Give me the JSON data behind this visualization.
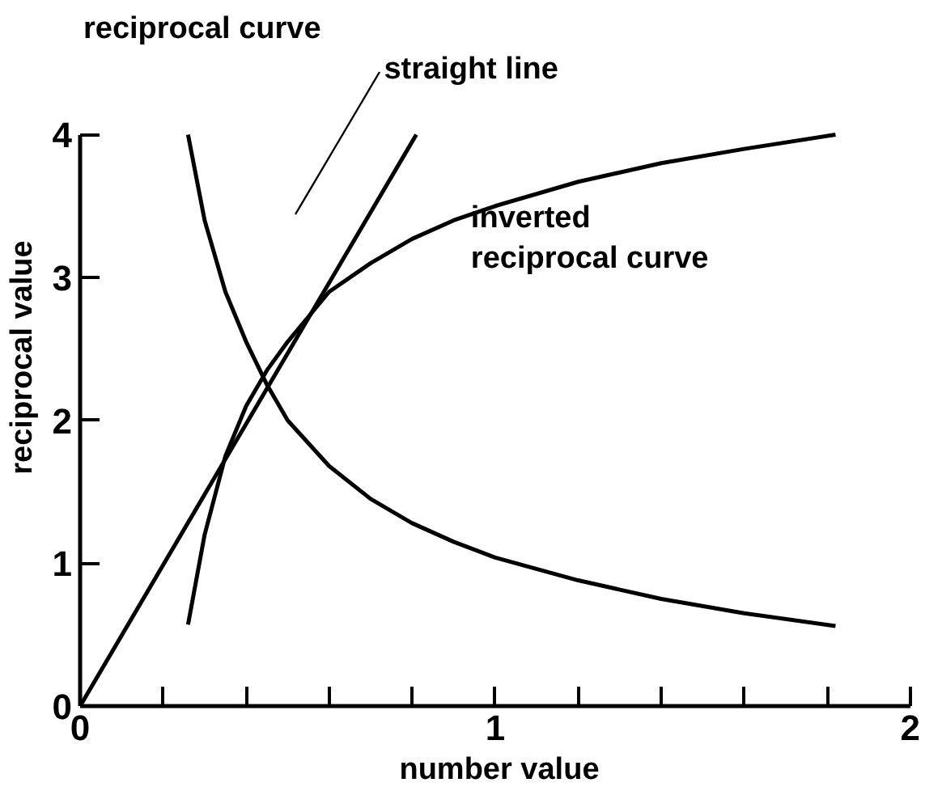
{
  "chart_data": {
    "type": "line",
    "xlabel": "number value",
    "ylabel": "reciprocal value",
    "xlim": [
      0,
      2
    ],
    "ylim": [
      0,
      4
    ],
    "xticks": [
      0,
      {
        "value": 0.2,
        "label": null
      },
      {
        "value": 0.4,
        "label": null
      },
      {
        "value": 0.6,
        "label": null
      },
      {
        "value": 0.8,
        "label": null
      },
      1,
      {
        "value": 1.2,
        "label": null
      },
      {
        "value": 1.4,
        "label": null
      },
      {
        "value": 1.6,
        "label": null
      },
      {
        "value": 1.8,
        "label": null
      },
      2
    ],
    "yticks": [
      0,
      1,
      2,
      3,
      4
    ],
    "grid": false,
    "marker": "none",
    "line_style": "solid",
    "series": [
      {
        "color": "#000000",
        "x": [
          0.26,
          0.3,
          0.35,
          0.4,
          0.45,
          0.5,
          0.6,
          0.7,
          0.8,
          0.9,
          1.0,
          1.2,
          1.4,
          1.6,
          1.82
        ],
        "values": [
          4.0,
          3.4,
          2.9,
          2.55,
          2.25,
          2.0,
          1.68,
          1.45,
          1.28,
          1.15,
          1.04,
          0.88,
          0.75,
          0.65,
          0.56
        ]
      },
      {
        "color": "#000000",
        "x": [
          0,
          0.81
        ],
        "values": [
          0,
          4.0
        ]
      },
      {
        "color": "#000000",
        "x": [
          0.26,
          0.3,
          0.35,
          0.4,
          0.45,
          0.5,
          0.6,
          0.7,
          0.8,
          0.9,
          1.0,
          1.2,
          1.4,
          1.6,
          1.82
        ],
        "values": [
          0.57,
          1.2,
          1.75,
          2.1,
          2.35,
          2.55,
          2.9,
          3.1,
          3.27,
          3.4,
          3.5,
          3.67,
          3.8,
          3.9,
          4.0
        ]
      }
    ],
    "annotations": [
      "reciprocal curve",
      {
        "text": "straight line",
        "x": 0.81,
        "y": 4.0
      },
      {
        "text": "inverted\nreciprocal curve",
        "x": 1.0,
        "y": 3.5
      }
    ]
  }
}
